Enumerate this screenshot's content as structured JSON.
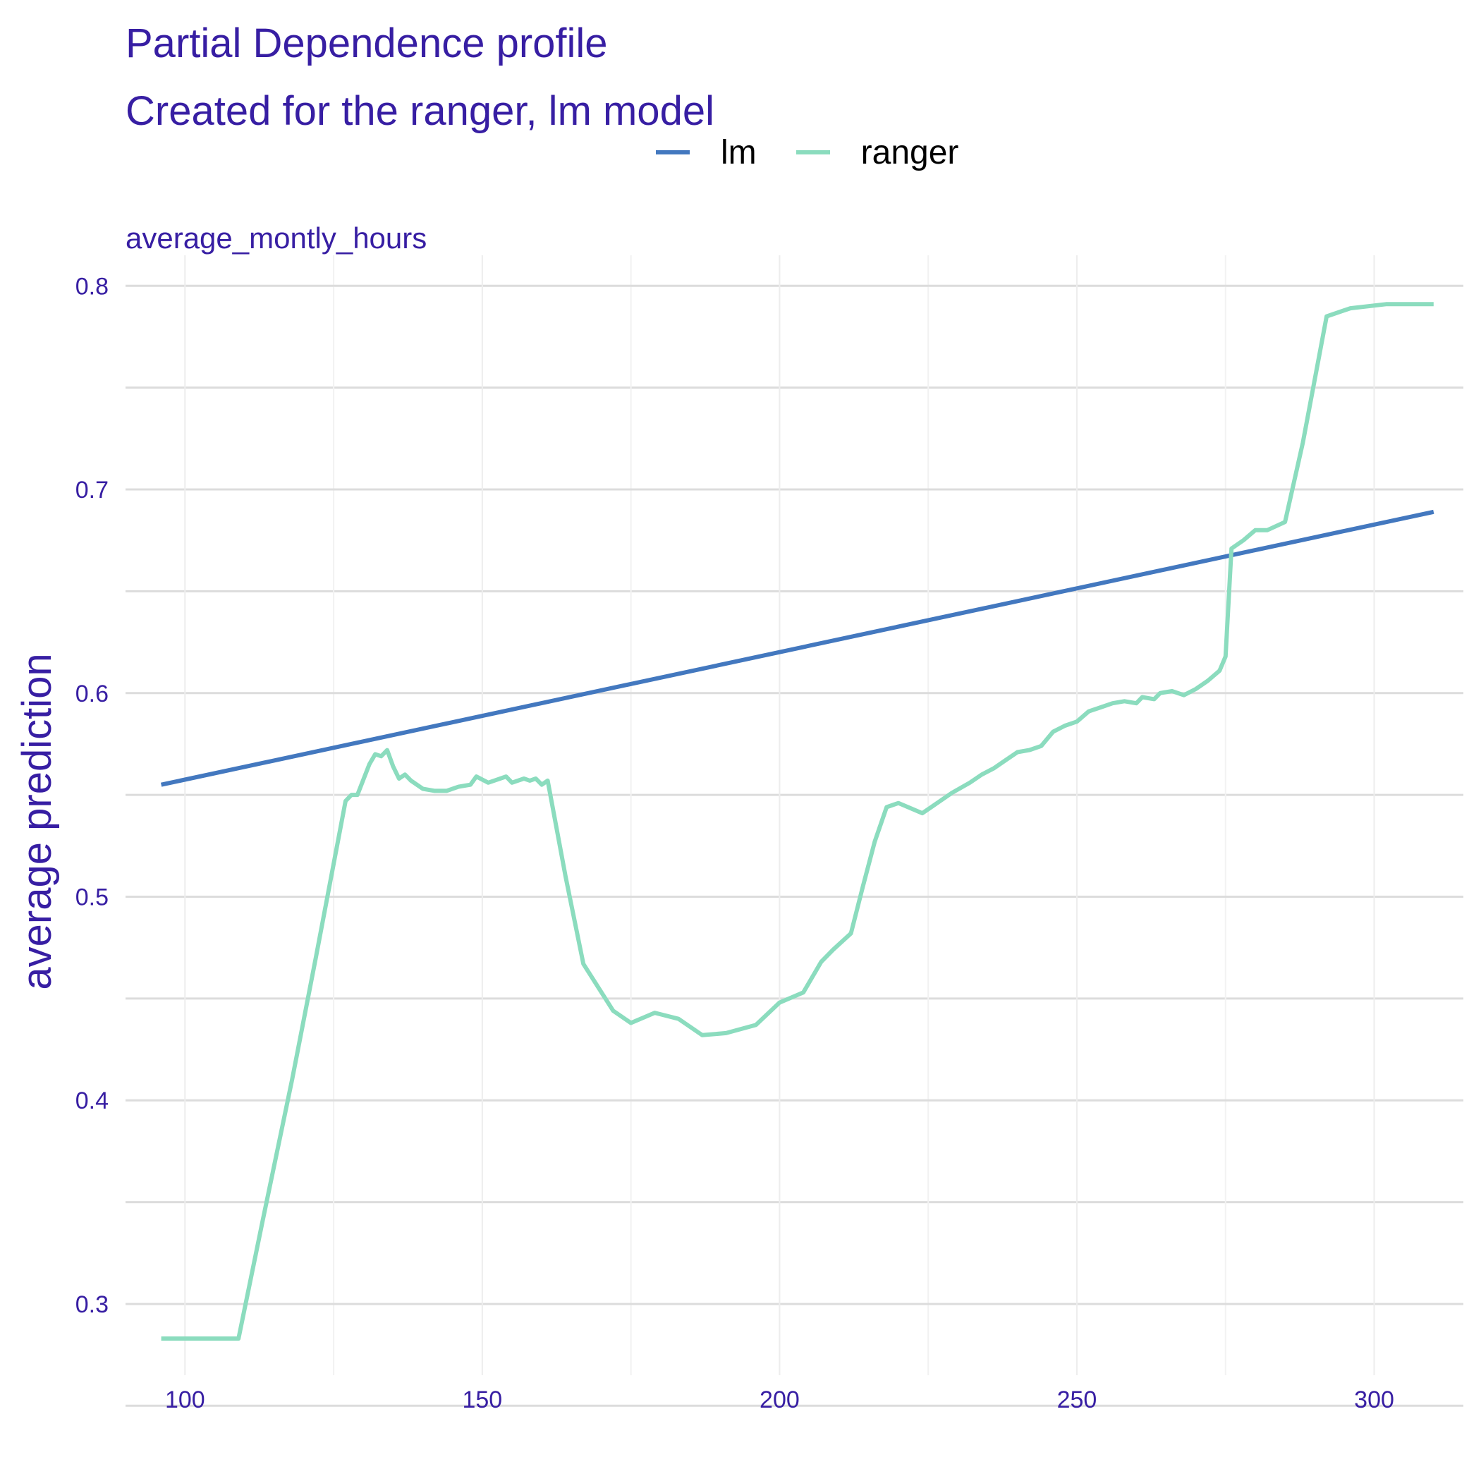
{
  "title": "Partial Dependence profile",
  "subtitle": "Created for the ranger, lm model",
  "legend": [
    {
      "name": "lm",
      "color": "#4378bf"
    },
    {
      "name": "ranger",
      "color": "#8bdcbe"
    }
  ],
  "chart_data": {
    "type": "line",
    "panel_title": "average_montly_hours",
    "xlabel": "",
    "ylabel": "average prediction",
    "xlim": [
      90,
      315
    ],
    "ylim": [
      0.265,
      0.815
    ],
    "xticks": [
      100,
      150,
      200,
      250,
      300
    ],
    "yticks": [
      0.3,
      0.4,
      0.5,
      0.6,
      0.7,
      0.8
    ],
    "ytick_labels": [
      "0.3",
      "0.4",
      "0.5",
      "0.6",
      "0.7",
      "0.8"
    ],
    "grid": true,
    "legend_position": "top",
    "series": [
      {
        "name": "lm",
        "color": "#4378bf",
        "x": [
          96,
          310
        ],
        "y": [
          0.555,
          0.689
        ]
      },
      {
        "name": "ranger",
        "color": "#8bdcbe",
        "x": [
          96,
          109,
          113,
          118,
          122,
          127,
          128,
          129,
          131,
          132,
          133,
          134,
          135,
          136,
          137,
          138,
          140,
          142,
          144,
          146,
          148,
          149,
          151,
          152,
          154,
          155,
          157,
          158,
          159,
          160,
          161,
          164,
          167,
          172,
          175,
          179,
          183,
          187,
          191,
          196,
          200,
          204,
          207,
          209,
          212,
          214,
          216,
          218,
          220,
          224,
          226,
          229,
          232,
          234,
          236,
          238,
          240,
          242,
          244,
          246,
          248,
          250,
          252,
          254,
          256,
          258,
          260,
          261,
          263,
          264,
          266,
          268,
          270,
          272,
          274,
          275,
          276,
          278,
          280,
          282,
          285,
          288,
          292,
          296,
          302,
          310
        ],
        "y": [
          0.283,
          0.283,
          0.34,
          0.41,
          0.47,
          0.547,
          0.55,
          0.55,
          0.565,
          0.57,
          0.569,
          0.572,
          0.564,
          0.558,
          0.56,
          0.557,
          0.553,
          0.552,
          0.552,
          0.554,
          0.555,
          0.559,
          0.556,
          0.557,
          0.559,
          0.556,
          0.558,
          0.557,
          0.558,
          0.555,
          0.557,
          0.51,
          0.467,
          0.444,
          0.438,
          0.443,
          0.44,
          0.432,
          0.433,
          0.437,
          0.448,
          0.453,
          0.468,
          0.474,
          0.482,
          0.505,
          0.527,
          0.544,
          0.546,
          0.541,
          0.545,
          0.551,
          0.556,
          0.56,
          0.563,
          0.567,
          0.571,
          0.572,
          0.574,
          0.581,
          0.584,
          0.586,
          0.591,
          0.593,
          0.595,
          0.596,
          0.595,
          0.598,
          0.597,
          0.6,
          0.601,
          0.599,
          0.602,
          0.606,
          0.611,
          0.618,
          0.671,
          0.675,
          0.68,
          0.68,
          0.684,
          0.723,
          0.785,
          0.789,
          0.791,
          0.791
        ]
      }
    ]
  }
}
